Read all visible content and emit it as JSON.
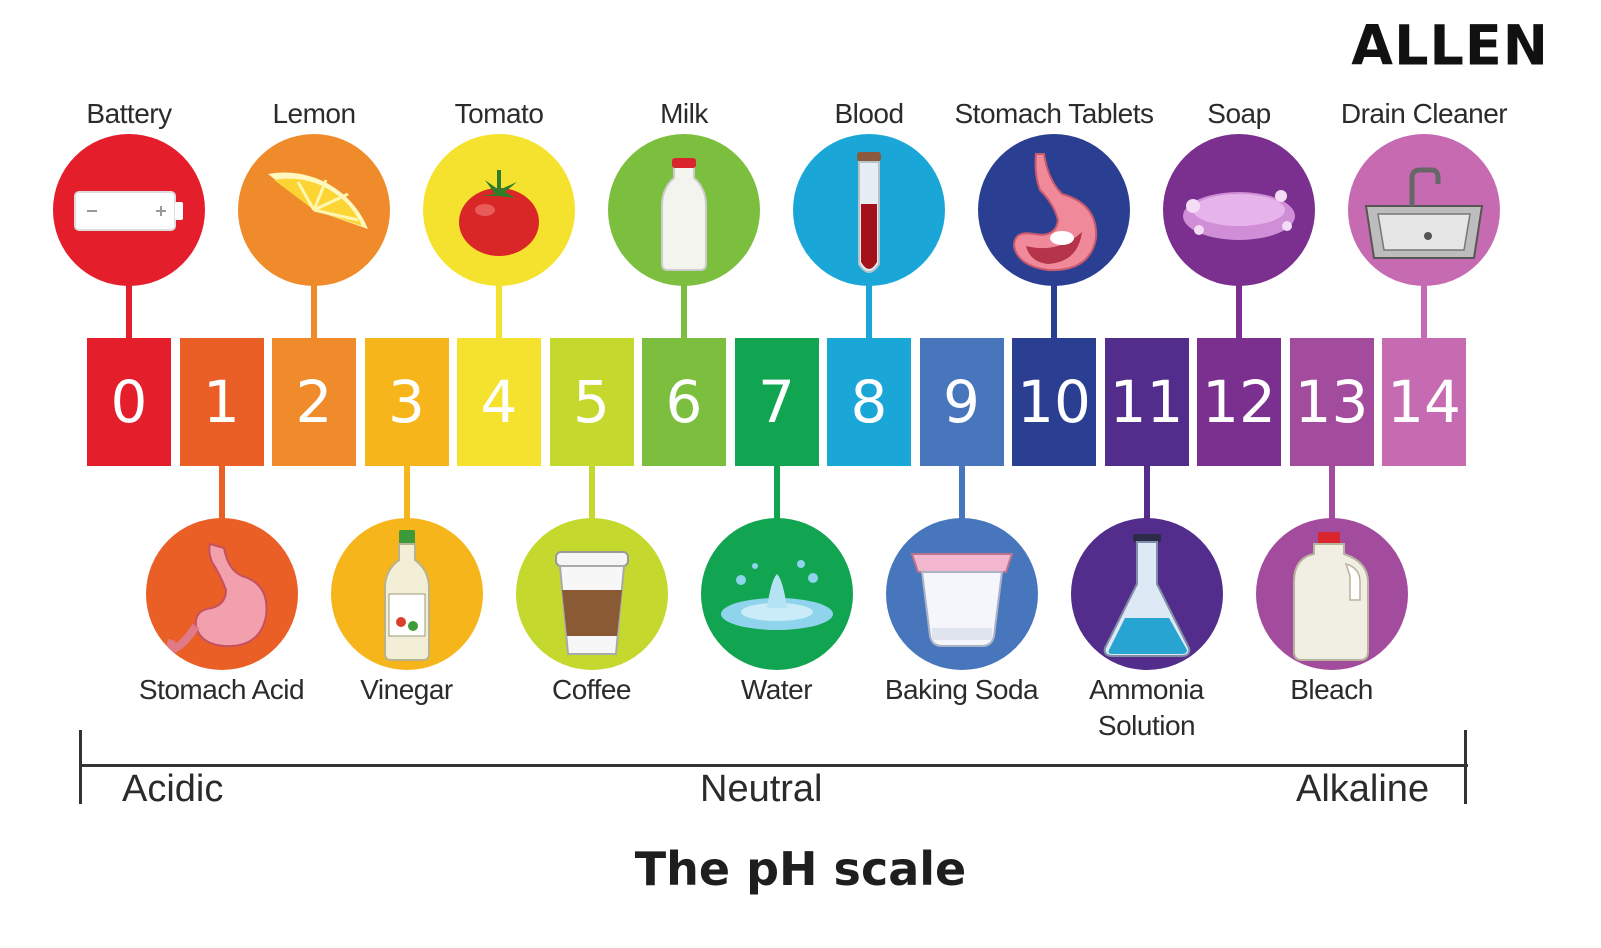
{
  "brand": "ALLEN",
  "title": "The pH scale",
  "scale_numbers": [
    "0",
    "1",
    "2",
    "3",
    "4",
    "5",
    "6",
    "7",
    "8",
    "9",
    "10",
    "11",
    "12",
    "13",
    "14"
  ],
  "scale_colors": [
    "#e41e2b",
    "#e95f25",
    "#ef8b2b",
    "#f7b51c",
    "#f5e22f",
    "#c4d82e",
    "#7cbf3f",
    "#11a451",
    "#1aa7d8",
    "#4776bd",
    "#2a3f92",
    "#522d8c",
    "#7b2f8f",
    "#a34c9d",
    "#c66bb1"
  ],
  "top_items": [
    {
      "label": "Battery",
      "ph": 0,
      "icon": "battery-icon",
      "color": "#e41e2b"
    },
    {
      "label": "Lemon",
      "ph": 2,
      "icon": "lemon-icon",
      "color": "#ef8b2b"
    },
    {
      "label": "Tomato",
      "ph": 4,
      "icon": "tomato-icon",
      "color": "#f5e22f"
    },
    {
      "label": "Milk",
      "ph": 6,
      "icon": "milk-bottle-icon",
      "color": "#7cbf3f"
    },
    {
      "label": "Blood",
      "ph": 8,
      "icon": "blood-tube-icon",
      "color": "#1aa7d8"
    },
    {
      "label": "Stomach Tablets",
      "ph": 10,
      "icon": "stomach-tablet-icon",
      "color": "#2a3f92"
    },
    {
      "label": "Soap",
      "ph": 12,
      "icon": "soap-icon",
      "color": "#7b2f8f"
    },
    {
      "label": "Drain Cleaner",
      "ph": 14,
      "icon": "sink-icon",
      "color": "#c66bb1"
    }
  ],
  "bottom_items": [
    {
      "label": "Stomach Acid",
      "ph": 1,
      "icon": "stomach-icon",
      "color": "#e95f25"
    },
    {
      "label": "Vinegar",
      "ph": 3,
      "icon": "vinegar-bottle-icon",
      "color": "#f7b51c"
    },
    {
      "label": "Coffee",
      "ph": 5,
      "icon": "coffee-cup-icon",
      "color": "#c4d82e"
    },
    {
      "label": "Water",
      "ph": 7,
      "icon": "water-splash-icon",
      "color": "#11a451"
    },
    {
      "label": "Baking Soda",
      "ph": 9,
      "icon": "baking-soda-tub-icon",
      "color": "#4776bd"
    },
    {
      "label": "Ammonia Solution",
      "ph": 11,
      "icon": "flask-icon",
      "color": "#522d8c"
    },
    {
      "label": "Bleach",
      "ph": 13,
      "icon": "bleach-jug-icon",
      "color": "#a34c9d"
    }
  ],
  "axis": {
    "left": "Acidic",
    "center": "Neutral",
    "right": "Alkaline"
  }
}
